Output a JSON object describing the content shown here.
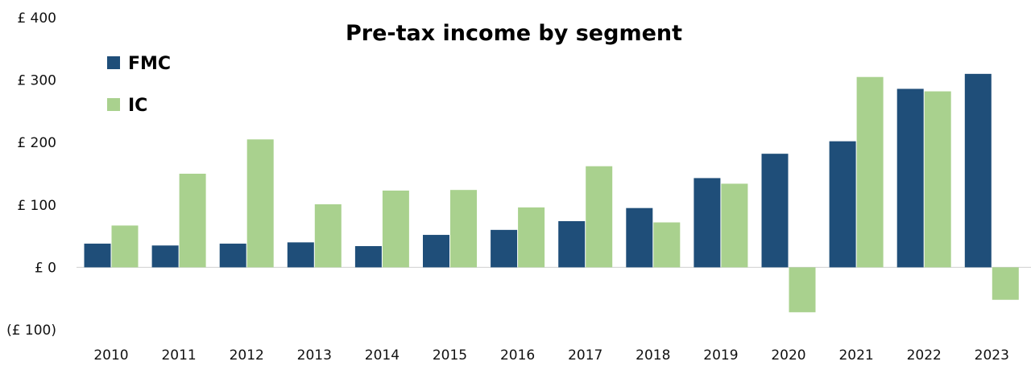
{
  "chart_data": {
    "type": "bar",
    "title": "Pre-tax income by segment",
    "xlabel": "",
    "ylabel": "",
    "categories": [
      "2010",
      "2011",
      "2012",
      "2013",
      "2014",
      "2015",
      "2016",
      "2017",
      "2018",
      "2019",
      "2020",
      "2021",
      "2022",
      "2023"
    ],
    "series": [
      {
        "name": "FMC",
        "color": "#1f4e79",
        "values": [
          38,
          35,
          38,
          40,
          34,
          52,
          60,
          74,
          95,
          143,
          182,
          202,
          286,
          310
        ]
      },
      {
        "name": "IC",
        "color": "#a9d18e",
        "values": [
          67,
          150,
          205,
          101,
          123,
          124,
          96,
          162,
          72,
          134,
          -72,
          305,
          282,
          -52
        ]
      }
    ],
    "ylim": [
      -100,
      400
    ],
    "yticks": [
      {
        "value": 400,
        "label": "£ 400",
        "color": "#111111"
      },
      {
        "value": 300,
        "label": "£ 300",
        "color": "#111111"
      },
      {
        "value": 200,
        "label": "£ 200",
        "color": "#111111"
      },
      {
        "value": 100,
        "label": "£ 100",
        "color": "#111111"
      },
      {
        "value": 0,
        "label": "£ 0",
        "color": "#111111"
      },
      {
        "value": -100,
        "label": "(£ 100)",
        "color": "#c00000"
      }
    ],
    "grid": false,
    "legend_position": "top-left"
  }
}
